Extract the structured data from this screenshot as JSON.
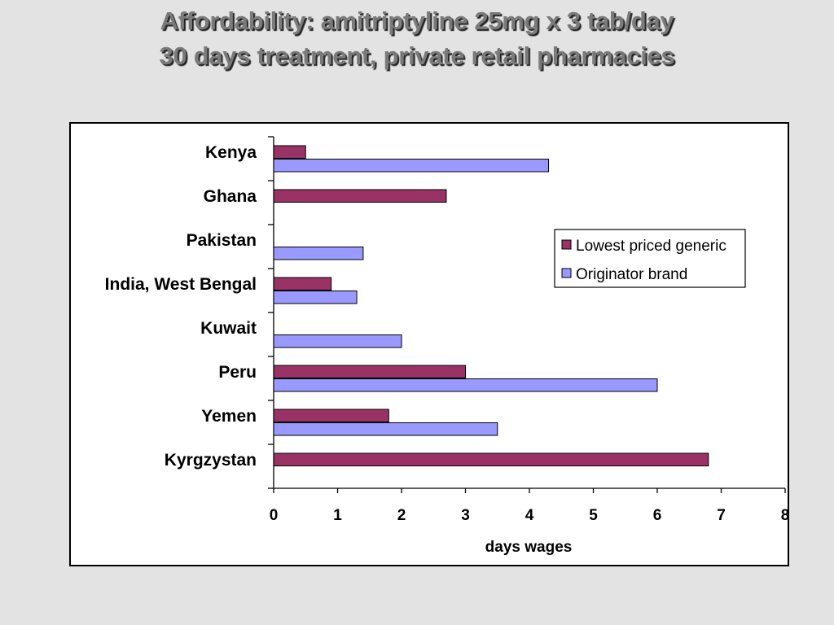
{
  "slide": {
    "title_line1": "Affordability: amitriptyline 25mg x 3 tab/day",
    "title_line2": "30 days treatment, private retail pharmacies"
  },
  "colors": {
    "generic": "#993366",
    "brand": "#9999ff",
    "background": "#e3e3e3"
  },
  "chart_data": {
    "type": "bar",
    "orientation": "horizontal",
    "categories": [
      "Kenya",
      "Ghana",
      "Pakistan",
      "India, West Bengal",
      "Kuwait",
      "Peru",
      "Yemen",
      "Kyrgzystan"
    ],
    "series": [
      {
        "name": "Lowest priced generic",
        "values": [
          0.5,
          2.7,
          null,
          0.9,
          null,
          3.0,
          1.8,
          6.8
        ]
      },
      {
        "name": "Originator brand",
        "values": [
          4.3,
          null,
          1.4,
          1.3,
          2.0,
          6.0,
          3.5,
          null
        ]
      }
    ],
    "xlabel": "days wages",
    "xlim": [
      0,
      8
    ],
    "xticks": [
      "0",
      "1",
      "2",
      "3",
      "4",
      "5",
      "6",
      "7",
      "8"
    ],
    "grid": false,
    "legend_position": "right"
  }
}
